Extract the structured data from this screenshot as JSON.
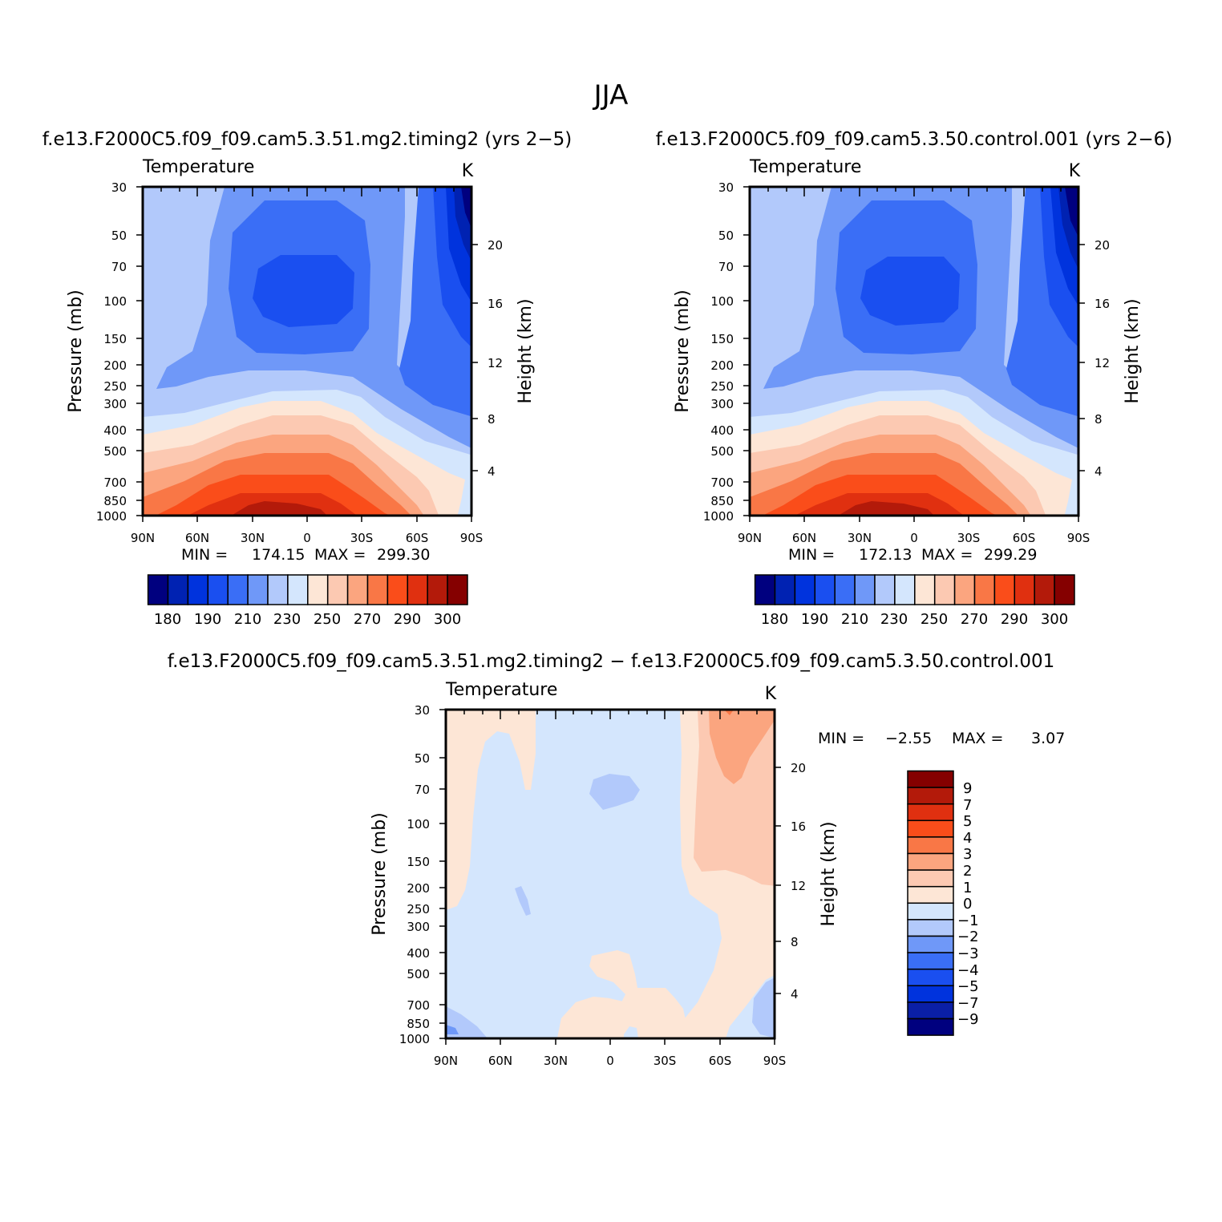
{
  "figure_title": "JJA",
  "colors": {
    "abs_scale": [
      "#00007f",
      "#0022b2",
      "#0033dd",
      "#1a4ff0",
      "#3a6ef6",
      "#6f98f8",
      "#b2c9fb",
      "#d4e6fd",
      "#fde6d6",
      "#fcc9b2",
      "#fba57f",
      "#f97746",
      "#fa4d1a",
      "#e03010",
      "#b31a0a",
      "#850000"
    ],
    "diff_scale": [
      "#00007f",
      "#0a1fa6",
      "#0033dd",
      "#1a4ff0",
      "#3a6ef6",
      "#6f98f8",
      "#b2c9fb",
      "#d4e6fd",
      "#fde6d6",
      "#fcc9b2",
      "#fba57f",
      "#f97746",
      "#fa4d1a",
      "#e03010",
      "#b31a0a",
      "#850000"
    ]
  },
  "chart_data": [
    {
      "type": "contour",
      "panel": "top-left",
      "run_title": "f.e13.F2000C5.f09_f09.cam5.3.51.mg2.timing2 (yrs 2−5)",
      "variable": "Temperature",
      "units": "K",
      "xlabel": "",
      "ylabel": "Pressure (mb)",
      "y2label": "Height (km)",
      "x_tick_labels": [
        "90N",
        "60N",
        "30N",
        "0",
        "30S",
        "60S",
        "90S"
      ],
      "x_range": [
        90,
        -90
      ],
      "y_tick_labels": [
        "30",
        "50",
        "70",
        "100",
        "150",
        "200",
        "250",
        "300",
        "400",
        "500",
        "700",
        "850",
        "1000"
      ],
      "y_range_mb": [
        1000,
        30
      ],
      "y2_tick_labels": [
        "4",
        "8",
        "12",
        "16",
        "20"
      ],
      "min_label": "MIN =",
      "min_value": "174.15",
      "max_label": "MAX =",
      "max_value": "299.30",
      "colorbar_labels": [
        "180",
        "190",
        "210",
        "230",
        "250",
        "270",
        "290",
        "300"
      ],
      "colorbar_orientation": "horizontal"
    },
    {
      "type": "contour",
      "panel": "top-right",
      "run_title": "f.e13.F2000C5.f09_f09.cam5.3.50.control.001 (yrs 2−6)",
      "variable": "Temperature",
      "units": "K",
      "xlabel": "",
      "ylabel": "Pressure (mb)",
      "y2label": "Height (km)",
      "x_tick_labels": [
        "90N",
        "60N",
        "30N",
        "0",
        "30S",
        "60S",
        "90S"
      ],
      "x_range": [
        90,
        -90
      ],
      "y_tick_labels": [
        "30",
        "50",
        "70",
        "100",
        "150",
        "200",
        "250",
        "300",
        "400",
        "500",
        "700",
        "850",
        "1000"
      ],
      "y_range_mb": [
        1000,
        30
      ],
      "y2_tick_labels": [
        "4",
        "8",
        "12",
        "16",
        "20"
      ],
      "min_label": "MIN =",
      "min_value": "172.13",
      "max_label": "MAX =",
      "max_value": "299.29",
      "colorbar_labels": [
        "180",
        "190",
        "210",
        "230",
        "250",
        "270",
        "290",
        "300"
      ],
      "colorbar_orientation": "horizontal"
    },
    {
      "type": "contour",
      "panel": "bottom-center",
      "run_title": "f.e13.F2000C5.f09_f09.cam5.3.51.mg2.timing2 − f.e13.F2000C5.f09_f09.cam5.3.50.control.001",
      "variable": "Temperature",
      "units": "K",
      "xlabel": "",
      "ylabel": "Pressure (mb)",
      "y2label": "Height (km)",
      "x_tick_labels": [
        "90N",
        "60N",
        "30N",
        "0",
        "30S",
        "60S",
        "90S"
      ],
      "x_range": [
        90,
        -90
      ],
      "y_tick_labels": [
        "30",
        "50",
        "70",
        "100",
        "150",
        "200",
        "250",
        "300",
        "400",
        "500",
        "700",
        "850",
        "1000"
      ],
      "y_range_mb": [
        1000,
        30
      ],
      "y2_tick_labels": [
        "4",
        "8",
        "12",
        "16",
        "20"
      ],
      "min_label": "MIN =",
      "min_value": "−2.55",
      "max_label": "MAX =",
      "max_value": "3.07",
      "colorbar_labels": [
        "9",
        "7",
        "5",
        "4",
        "3",
        "2",
        "1",
        "0",
        "−1",
        "−2",
        "−3",
        "−4",
        "−5",
        "−7",
        "−9"
      ],
      "colorbar_orientation": "vertical"
    }
  ]
}
